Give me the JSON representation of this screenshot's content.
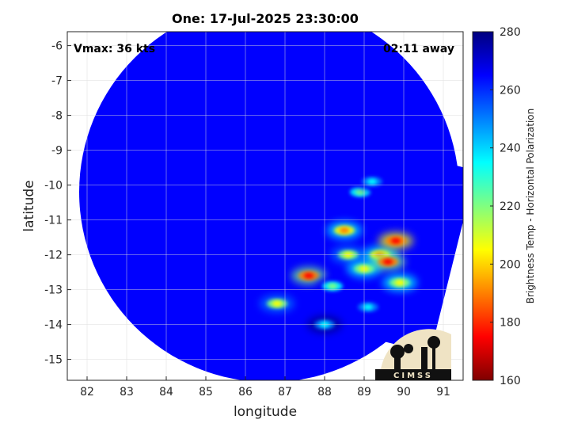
{
  "chart_data": {
    "type": "heatmap",
    "title": "One: 17-Jul-2025 23:30:00",
    "xlabel": "longitude",
    "ylabel": "latitude",
    "xlim": [
      81.5,
      91.5
    ],
    "ylim": [
      -15.6,
      -5.6
    ],
    "xticks": [
      82,
      83,
      84,
      85,
      86,
      87,
      88,
      89,
      90,
      91
    ],
    "yticks": [
      -6,
      -7,
      -8,
      -9,
      -10,
      -11,
      -12,
      -13,
      -14,
      -15
    ],
    "grid": true,
    "colorbar": {
      "label": "Brightness Temp - Horizontal Polarization",
      "range": [
        160,
        280
      ],
      "ticks": [
        160,
        180,
        200,
        220,
        240,
        260,
        280
      ],
      "colormap": "jet",
      "colors": [
        "#7f0000",
        "#ff0000",
        "#ff8000",
        "#ffff00",
        "#80ff80",
        "#00ffff",
        "#0080ff",
        "#0000ff",
        "#00007f"
      ]
    },
    "annotations": {
      "vmax": "Vmax: 36 kts",
      "time_offset": "02:11 away"
    },
    "background_temp": 262,
    "features": [
      {
        "lon": 86.8,
        "lat": -13.4,
        "value": 205
      },
      {
        "lon": 87.6,
        "lat": -12.6,
        "value": 180
      },
      {
        "lon": 88.6,
        "lat": -12.0,
        "value": 210
      },
      {
        "lon": 88.5,
        "lat": -11.3,
        "value": 195
      },
      {
        "lon": 89.0,
        "lat": -12.4,
        "value": 200
      },
      {
        "lon": 89.4,
        "lat": -12.0,
        "value": 190
      },
      {
        "lon": 89.8,
        "lat": -11.6,
        "value": 172
      },
      {
        "lon": 89.6,
        "lat": -12.2,
        "value": 178
      },
      {
        "lon": 89.9,
        "lat": -12.8,
        "value": 200
      },
      {
        "lon": 88.9,
        "lat": -10.2,
        "value": 225
      },
      {
        "lon": 89.2,
        "lat": -9.9,
        "value": 230
      },
      {
        "lon": 88.2,
        "lat": -12.9,
        "value": 218
      },
      {
        "lon": 89.1,
        "lat": -13.5,
        "value": 230
      },
      {
        "lon": 88.0,
        "lat": -14.0,
        "value": 238
      }
    ],
    "logo": "CIMSS"
  }
}
